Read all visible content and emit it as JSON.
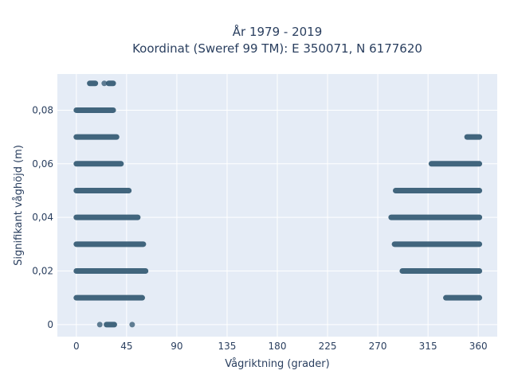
{
  "chart_data": {
    "type": "scatter",
    "title_line1": "År 1979 - 2019",
    "title_line2": "Koordinat (Sweref 99 TM): E 350071, N 6177620",
    "xlabel": "Vågriktning (grader)",
    "ylabel": "Signifikant våghöjd (m)",
    "xlim": [
      -17,
      377
    ],
    "ylim": [
      -0.0045,
      0.0935
    ],
    "x_ticks": [
      0,
      45,
      90,
      135,
      180,
      225,
      270,
      315,
      360
    ],
    "x_tick_labels": [
      "0",
      "45",
      "90",
      "135",
      "180",
      "225",
      "270",
      "315",
      "360"
    ],
    "y_ticks": [
      0,
      0.02,
      0.04,
      0.06,
      0.08
    ],
    "y_tick_labels": [
      "0",
      "0,02",
      "0,04",
      "0,06",
      "0,08"
    ],
    "grid": true,
    "colors": {
      "marker": "#2f5670",
      "plot_bg": "#e5ecf6",
      "grid": "#ffffff",
      "text": "#2a3f5f"
    },
    "rows": [
      {
        "y": 0.0,
        "segments": [
          [
            21,
            21
          ],
          [
            27,
            34
          ],
          [
            50,
            50
          ]
        ]
      },
      {
        "y": 0.01,
        "segments": [
          [
            0,
            59
          ],
          [
            331,
            361
          ]
        ]
      },
      {
        "y": 0.02,
        "segments": [
          [
            0,
            62
          ],
          [
            292,
            361
          ]
        ]
      },
      {
        "y": 0.03,
        "segments": [
          [
            0,
            60
          ],
          [
            285,
            361
          ]
        ]
      },
      {
        "y": 0.04,
        "segments": [
          [
            0,
            55
          ],
          [
            282,
            361
          ]
        ]
      },
      {
        "y": 0.05,
        "segments": [
          [
            0,
            47
          ],
          [
            286,
            361
          ]
        ]
      },
      {
        "y": 0.06,
        "segments": [
          [
            0,
            40
          ],
          [
            318,
            361
          ]
        ]
      },
      {
        "y": 0.07,
        "segments": [
          [
            0,
            36
          ],
          [
            350,
            361
          ]
        ]
      },
      {
        "y": 0.08,
        "segments": [
          [
            0,
            33
          ]
        ]
      },
      {
        "y": 0.09,
        "segments": [
          [
            12,
            17
          ],
          [
            25,
            25
          ],
          [
            29,
            33
          ]
        ]
      }
    ]
  }
}
